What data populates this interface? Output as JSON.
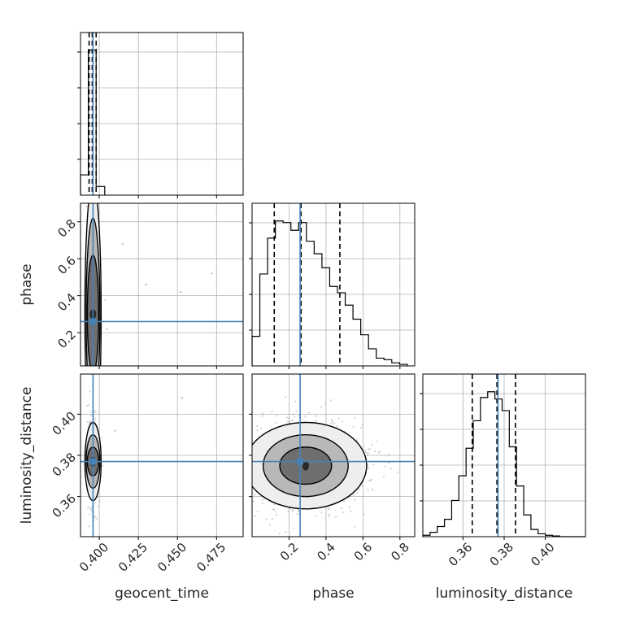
{
  "chart_data": {
    "type": "corner",
    "parameters": [
      "geocent_time",
      "phase",
      "luminosity_distance"
    ],
    "truths": {
      "geocent_time": 0.396,
      "phase": 0.26,
      "luminosity_distance": 0.377
    },
    "colors": {
      "truth": "#4682b4",
      "hist": "#000000",
      "grid": "#b0b0b0",
      "background": "#ffffff"
    },
    "grid": true,
    "marginals": [
      {
        "parameter": "geocent_time",
        "xlim": [
          0.388,
          0.492
        ],
        "quantiles": [
          0.3935,
          0.3955,
          0.398
        ],
        "bins": [
          0.388,
          0.393,
          0.398,
          0.4035
        ],
        "counts": [
          0.14,
          1.0,
          0.06
        ]
      },
      {
        "parameter": "phase",
        "xlim": [
          0.0,
          0.88
        ],
        "xticks": [
          0.2,
          0.4,
          0.6,
          0.8
        ],
        "xtick_labels": [
          "0.2",
          "0.4",
          "0.6",
          "0.8"
        ],
        "quantiles": [
          0.12,
          0.265,
          0.475
        ],
        "bins": [
          0.0,
          0.042,
          0.084,
          0.126,
          0.168,
          0.21,
          0.252,
          0.294,
          0.336,
          0.378,
          0.42,
          0.462,
          0.504,
          0.546,
          0.588,
          0.63,
          0.672,
          0.714,
          0.756,
          0.798,
          0.84
        ],
        "counts": [
          0.19,
          0.59,
          0.82,
          0.93,
          0.92,
          0.87,
          0.92,
          0.8,
          0.72,
          0.63,
          0.51,
          0.47,
          0.39,
          0.3,
          0.2,
          0.11,
          0.05,
          0.04,
          0.02,
          0.01
        ]
      },
      {
        "parameter": "luminosity_distance",
        "xlim": [
          0.3405,
          0.4195
        ],
        "xticks": [
          0.36,
          0.38,
          0.4
        ],
        "xtick_labels": [
          "0.36",
          "0.38",
          "0.40"
        ],
        "quantiles": [
          0.3645,
          0.3765,
          0.3855
        ],
        "bins": [
          0.3405,
          0.344,
          0.3475,
          0.351,
          0.3545,
          0.358,
          0.3615,
          0.365,
          0.3685,
          0.372,
          0.3755,
          0.379,
          0.3825,
          0.386,
          0.3895,
          0.393,
          0.3965,
          0.4,
          0.4035,
          0.407,
          0.4105,
          0.4195
        ],
        "counts": [
          0.01,
          0.03,
          0.07,
          0.12,
          0.25,
          0.42,
          0.61,
          0.8,
          0.96,
          1.0,
          0.95,
          0.87,
          0.62,
          0.35,
          0.15,
          0.05,
          0.02,
          0.01,
          0.005,
          0.0,
          0.0
        ]
      }
    ],
    "panels": [
      {
        "x": "geocent_time",
        "y": "phase",
        "xlim": [
          0.388,
          0.492
        ],
        "ylim": [
          0.02,
          0.9
        ],
        "yticks": [
          0.2,
          0.4,
          0.6,
          0.8
        ],
        "ytick_labels": [
          "0.2",
          "0.4",
          "0.6",
          "0.8"
        ],
        "center": [
          0.396,
          0.3
        ],
        "spread": [
          0.002,
          0.2
        ],
        "points": 320,
        "outliers": [
          [
            0.415,
            0.68
          ],
          [
            0.43,
            0.46
          ],
          [
            0.452,
            0.42
          ],
          [
            0.472,
            0.52
          ],
          [
            0.405,
            0.22
          ]
        ],
        "contours": [
          [
            0.0018,
            0.32
          ],
          [
            0.0032,
            0.52
          ],
          [
            0.0044,
            0.72
          ]
        ]
      },
      {
        "x": "geocent_time",
        "y": "luminosity_distance",
        "xlim": [
          0.388,
          0.492
        ],
        "ylim": [
          0.3405,
          0.4195
        ],
        "xticks": [
          0.4,
          0.425,
          0.45,
          0.475
        ],
        "xtick_labels": [
          "0.400",
          "0.425",
          "0.450",
          "0.475"
        ],
        "yticks": [
          0.36,
          0.38,
          0.4
        ],
        "ytick_labels": [
          "0.36",
          "0.38",
          "0.40"
        ],
        "center": [
          0.396,
          0.377
        ],
        "spread": [
          0.002,
          0.012
        ],
        "points": 320,
        "outliers": [
          [
            0.453,
            0.408
          ],
          [
            0.41,
            0.392
          ]
        ],
        "contours": [
          [
            0.0018,
            0.007
          ],
          [
            0.0032,
            0.013
          ],
          [
            0.0044,
            0.019
          ]
        ]
      },
      {
        "x": "phase",
        "y": "luminosity_distance",
        "xlim": [
          0.0,
          0.88
        ],
        "ylim": [
          0.3405,
          0.4195
        ],
        "xticks": [
          0.2,
          0.4,
          0.6,
          0.8
        ],
        "xtick_labels": [
          "0.2",
          "0.4",
          "0.6",
          "0.8"
        ],
        "center": [
          0.29,
          0.375
        ],
        "spread": [
          0.17,
          0.011
        ],
        "points": 900,
        "outliers": [],
        "contours": [
          [
            0.14,
            0.009
          ],
          [
            0.23,
            0.015
          ],
          [
            0.33,
            0.021
          ]
        ]
      }
    ]
  }
}
